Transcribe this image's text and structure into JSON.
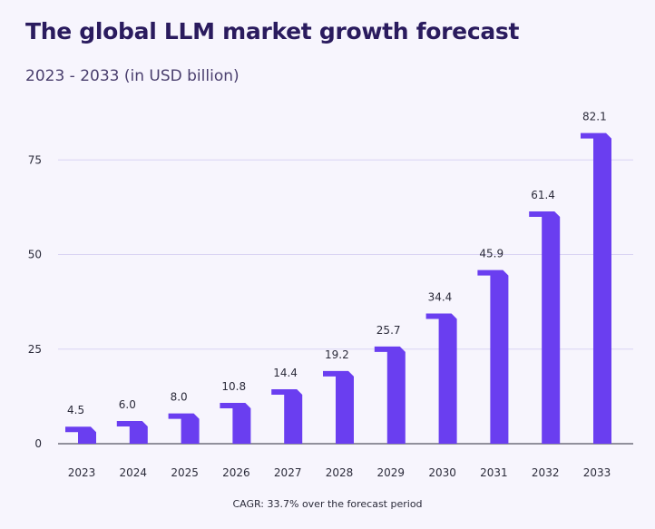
{
  "title": "The global LLM market growth forecast",
  "subtitle": "2023 - 2033 (in USD billion)",
  "footnote": "CAGR: 33.7% over the forecast period",
  "colors": {
    "bar": "#6a3ef0",
    "bar_top": "#5a2fd8",
    "grid": "#d9d3f3",
    "axis": "#2b2b3a",
    "background": "#f7f5fd"
  },
  "chart_data": {
    "type": "bar",
    "title": "The global LLM market growth forecast",
    "subtitle": "2023 - 2033 (in USD billion)",
    "xlabel": "",
    "ylabel": "",
    "categories": [
      "2023",
      "2024",
      "2025",
      "2026",
      "2027",
      "2028",
      "2029",
      "2030",
      "2031",
      "2032",
      "2033"
    ],
    "values": [
      4.5,
      6.0,
      8.0,
      10.8,
      14.4,
      19.2,
      25.7,
      34.4,
      45.9,
      61.4,
      82.1
    ],
    "value_labels": [
      "4.5",
      "6.0",
      "8.0",
      "10.8",
      "14.4",
      "19.2",
      "25.7",
      "34.4",
      "45.9",
      "61.4",
      "82.1"
    ],
    "yticks": [
      0,
      25,
      50,
      75
    ],
    "ylim": [
      0,
      82.1
    ],
    "grid": true,
    "legend": "none"
  }
}
